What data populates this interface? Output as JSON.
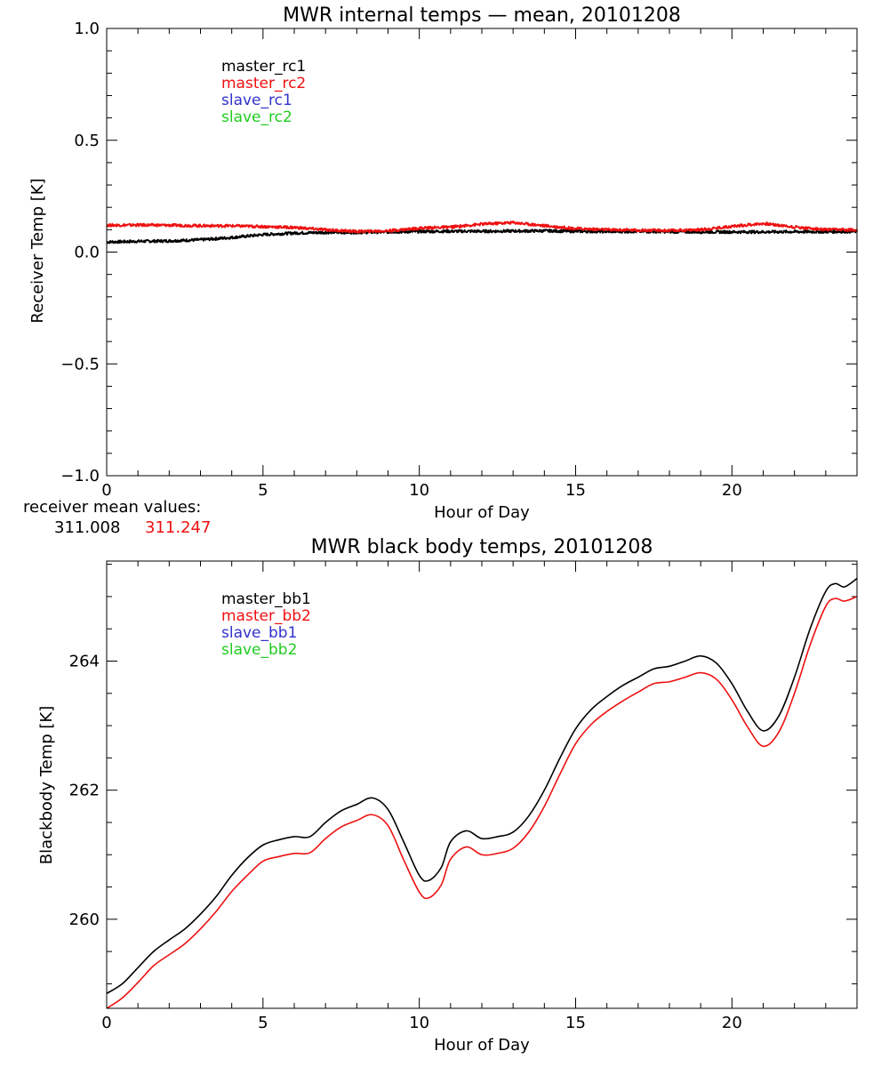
{
  "chart_data": [
    {
      "type": "line",
      "title": "MWR internal temps — mean, 20101208",
      "xlabel": "Hour of Day",
      "ylabel": "Receiver Temp [K]",
      "xlim": [
        0,
        24
      ],
      "ylim": [
        -1.0,
        1.0
      ],
      "x_ticks": [
        0,
        5,
        10,
        15,
        20
      ],
      "x_tick_labels": [
        "0",
        "5",
        "10",
        "15",
        "20"
      ],
      "y_ticks": [
        -1.0,
        -0.5,
        0.0,
        0.5,
        1.0
      ],
      "y_tick_labels": [
        "−1.0",
        "−0.5",
        "0.0",
        "0.5",
        "1.0"
      ],
      "grid": false,
      "legend_position": "top-left",
      "legend": [
        {
          "name": "master_rc1",
          "color": "#000000"
        },
        {
          "name": "master_rc2",
          "color": "#ee1111"
        },
        {
          "name": "slave_rc1",
          "color": "#3333cc"
        },
        {
          "name": "slave_rc2",
          "color": "#22cc22"
        }
      ],
      "series": [
        {
          "name": "master_rc1",
          "color": "#000000",
          "x": [
            0,
            1,
            2,
            3,
            4,
            5,
            6,
            7,
            8,
            9,
            10,
            11,
            12,
            13,
            14,
            15,
            16,
            17,
            18,
            19,
            20,
            21,
            22,
            23,
            24
          ],
          "y": [
            0.045,
            0.048,
            0.05,
            0.055,
            0.065,
            0.078,
            0.085,
            0.088,
            0.088,
            0.09,
            0.092,
            0.093,
            0.093,
            0.094,
            0.095,
            0.093,
            0.092,
            0.092,
            0.091,
            0.09,
            0.09,
            0.09,
            0.091,
            0.091,
            0.092
          ]
        },
        {
          "name": "master_rc2",
          "color": "#ee1111",
          "x": [
            0,
            1,
            2,
            3,
            4,
            5,
            6,
            7,
            8,
            9,
            10,
            11,
            12,
            13,
            14,
            15,
            16,
            17,
            18,
            19,
            20,
            21,
            22,
            23,
            24
          ],
          "y": [
            0.12,
            0.121,
            0.12,
            0.118,
            0.117,
            0.114,
            0.11,
            0.1,
            0.092,
            0.095,
            0.107,
            0.112,
            0.125,
            0.132,
            0.118,
            0.105,
            0.1,
            0.098,
            0.096,
            0.1,
            0.115,
            0.128,
            0.112,
            0.1,
            0.1
          ]
        }
      ],
      "annotation": {
        "label": "receiver mean values:",
        "values": [
          "311.008",
          "311.247"
        ],
        "colors": [
          "#000000",
          "#ee1111"
        ]
      }
    },
    {
      "type": "line",
      "title": "MWR black body temps, 20101208",
      "xlabel": "Hour of Day",
      "ylabel": "Blackbody Temp [K]",
      "xlim": [
        0,
        24
      ],
      "ylim": [
        258.62,
        265.55
      ],
      "x_ticks": [
        0,
        5,
        10,
        15,
        20
      ],
      "x_tick_labels": [
        "0",
        "5",
        "10",
        "15",
        "20"
      ],
      "y_ticks": [
        260,
        262,
        264
      ],
      "y_tick_labels": [
        "260",
        "262",
        "264"
      ],
      "y_minor_ticks": [
        259,
        259.5,
        260.5,
        261,
        261.5,
        262.5,
        263,
        263.5,
        264.5,
        265,
        265.5
      ],
      "grid": false,
      "legend_position": "top-left",
      "legend": [
        {
          "name": "master_bb1",
          "color": "#000000"
        },
        {
          "name": "master_bb2",
          "color": "#ee1111"
        },
        {
          "name": "slave_bb1",
          "color": "#3333cc"
        },
        {
          "name": "slave_bb2",
          "color": "#22cc22"
        }
      ],
      "series": [
        {
          "name": "master_bb1",
          "color": "#000000",
          "x": [
            0,
            0.5,
            1.0,
            1.5,
            2.0,
            2.5,
            3.0,
            3.5,
            4.0,
            4.5,
            5.0,
            5.5,
            6.0,
            6.5,
            7.0,
            7.5,
            8.0,
            8.5,
            9.0,
            9.5,
            10.0,
            10.3,
            10.7,
            11.0,
            11.5,
            12.0,
            12.5,
            13.0,
            13.5,
            14.0,
            14.5,
            15.0,
            15.5,
            16.0,
            16.5,
            17.0,
            17.5,
            18.0,
            18.5,
            19.0,
            19.5,
            20.0,
            20.5,
            21.0,
            21.5,
            22.0,
            22.5,
            23.0,
            23.3,
            23.6,
            24.0
          ],
          "y": [
            258.85,
            259.0,
            259.25,
            259.5,
            259.68,
            259.85,
            260.08,
            260.35,
            260.68,
            260.95,
            261.15,
            261.23,
            261.28,
            261.28,
            261.5,
            261.68,
            261.78,
            261.88,
            261.7,
            261.2,
            260.68,
            260.6,
            260.8,
            261.2,
            261.37,
            261.25,
            261.28,
            261.35,
            261.6,
            262.0,
            262.5,
            262.95,
            263.25,
            263.45,
            263.62,
            263.75,
            263.88,
            263.92,
            264.0,
            264.08,
            263.97,
            263.65,
            263.22,
            262.92,
            263.15,
            263.75,
            264.5,
            265.08,
            265.2,
            265.15,
            265.28
          ]
        },
        {
          "name": "master_bb2",
          "color": "#ee1111",
          "x": [
            0,
            0.5,
            1.0,
            1.5,
            2.0,
            2.5,
            3.0,
            3.5,
            4.0,
            4.5,
            5.0,
            5.5,
            6.0,
            6.5,
            7.0,
            7.5,
            8.0,
            8.5,
            9.0,
            9.5,
            10.0,
            10.3,
            10.7,
            11.0,
            11.5,
            12.0,
            12.5,
            13.0,
            13.5,
            14.0,
            14.5,
            15.0,
            15.5,
            16.0,
            16.5,
            17.0,
            17.5,
            18.0,
            18.5,
            19.0,
            19.5,
            20.0,
            20.5,
            21.0,
            21.5,
            22.0,
            22.5,
            23.0,
            23.3,
            23.6,
            24.0
          ],
          "y": [
            258.62,
            258.78,
            259.02,
            259.28,
            259.45,
            259.62,
            259.85,
            260.12,
            260.43,
            260.68,
            260.9,
            260.97,
            261.02,
            261.03,
            261.25,
            261.43,
            261.53,
            261.62,
            261.45,
            260.92,
            260.42,
            260.33,
            260.53,
            260.93,
            261.12,
            261.0,
            261.02,
            261.1,
            261.35,
            261.75,
            262.25,
            262.72,
            263.02,
            263.22,
            263.38,
            263.52,
            263.65,
            263.68,
            263.75,
            263.82,
            263.72,
            263.4,
            262.98,
            262.68,
            262.9,
            263.5,
            264.25,
            264.85,
            264.97,
            264.93,
            265.0
          ]
        }
      ]
    }
  ]
}
